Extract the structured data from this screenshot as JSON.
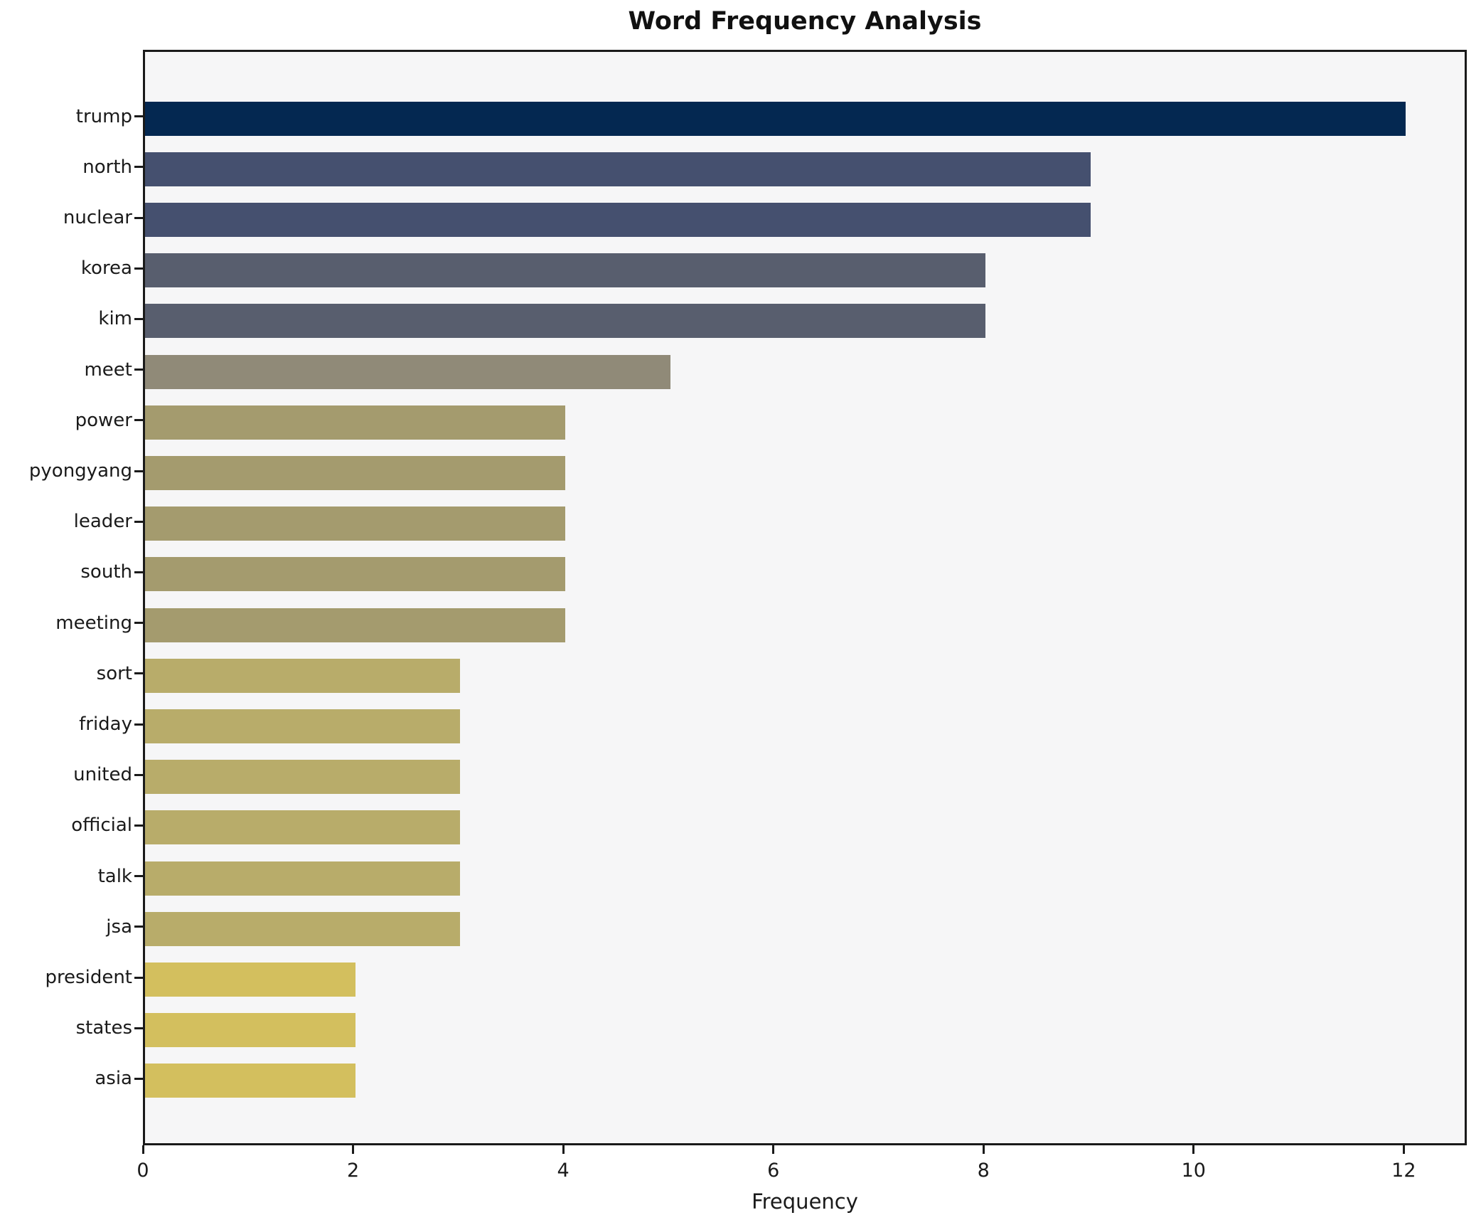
{
  "chart_data": {
    "type": "bar",
    "orientation": "horizontal",
    "title": "Word Frequency Analysis",
    "xlabel": "Frequency",
    "ylabel": "",
    "categories": [
      "trump",
      "north",
      "nuclear",
      "korea",
      "kim",
      "meet",
      "power",
      "pyongyang",
      "leader",
      "south",
      "meeting",
      "sort",
      "friday",
      "united",
      "official",
      "talk",
      "jsa",
      "president",
      "states",
      "asia"
    ],
    "values": [
      12,
      9,
      9,
      8,
      8,
      5,
      4,
      4,
      4,
      4,
      4,
      3,
      3,
      3,
      3,
      3,
      3,
      2,
      2,
      2
    ],
    "bar_colors": [
      "#042851",
      "#45506f",
      "#45506f",
      "#585e6e",
      "#585e6e",
      "#908a78",
      "#a49b6e",
      "#a49b6e",
      "#a49b6e",
      "#a49b6e",
      "#a49b6e",
      "#b8ac6a",
      "#b8ac6a",
      "#b8ac6a",
      "#b8ac6a",
      "#b8ac6a",
      "#b8ac6a",
      "#d3bf5e",
      "#d3bf5e",
      "#d3bf5e"
    ],
    "xlim": [
      0,
      12.6
    ],
    "xticks": [
      0,
      2,
      4,
      6,
      8,
      10,
      12
    ],
    "grid": false,
    "legend": null,
    "plot_background": "#f6f6f7",
    "spine_color": "#1a1a1a",
    "text_color": "#1a1a1a"
  }
}
